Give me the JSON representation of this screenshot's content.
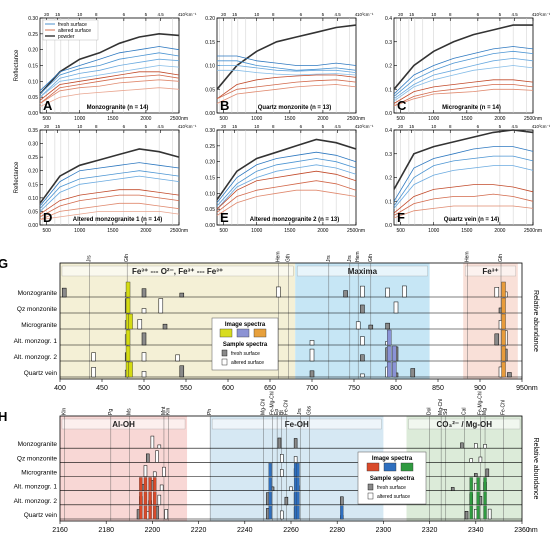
{
  "chart_data": [
    {
      "id": "A",
      "type": "line",
      "title": "Monzogranite (n = 14)",
      "ylabel": "Reflectance",
      "xlim": [
        400,
        2500
      ],
      "ylim": [
        0,
        0.3
      ],
      "yticks": [
        "0.00",
        "0.05",
        "0.10",
        "0.15",
        "0.20",
        "0.25",
        "0.30"
      ],
      "xticks": [
        "500",
        "1000",
        "1500",
        "2000",
        "2500nm"
      ],
      "top_ticks": [
        "20",
        "15",
        "10",
        "8",
        "6",
        "5",
        "4.5",
        "4",
        "10³cm⁻¹"
      ],
      "legend": [
        "fresh surface",
        "altered surface",
        "powder"
      ],
      "series": [
        {
          "group": "powder",
          "values": [
            0.06,
            0.13,
            0.17,
            0.19,
            0.22,
            0.24,
            0.25,
            0.245
          ]
        },
        {
          "group": "fresh",
          "values": [
            0.07,
            0.13,
            0.15,
            0.17,
            0.19,
            0.2,
            0.21,
            0.2
          ]
        },
        {
          "group": "fresh",
          "values": [
            0.06,
            0.12,
            0.14,
            0.15,
            0.17,
            0.18,
            0.19,
            0.18
          ]
        },
        {
          "group": "fresh",
          "values": [
            0.05,
            0.11,
            0.125,
            0.135,
            0.15,
            0.16,
            0.17,
            0.165
          ]
        },
        {
          "group": "fresh",
          "values": [
            0.05,
            0.1,
            0.11,
            0.12,
            0.13,
            0.14,
            0.15,
            0.145
          ]
        },
        {
          "group": "altered",
          "values": [
            0.04,
            0.09,
            0.1,
            0.11,
            0.12,
            0.13,
            0.13,
            0.12
          ]
        },
        {
          "group": "altered",
          "values": [
            0.03,
            0.08,
            0.09,
            0.1,
            0.11,
            0.115,
            0.12,
            0.11
          ]
        },
        {
          "group": "altered",
          "values": [
            0.03,
            0.07,
            0.08,
            0.085,
            0.095,
            0.1,
            0.105,
            0.1
          ]
        },
        {
          "group": "altered",
          "values": [
            0.02,
            0.05,
            0.06,
            0.065,
            0.07,
            0.075,
            0.08,
            0.075
          ]
        }
      ]
    },
    {
      "id": "B",
      "type": "line",
      "title": "Quartz monzonite (n = 13)",
      "xlim": [
        400,
        2500
      ],
      "ylim": [
        0,
        0.2
      ],
      "yticks": [
        "0.00",
        "0.05",
        "0.10",
        "0.15",
        "0.20"
      ],
      "xticks": [
        "500",
        "1000",
        "1500",
        "2000",
        "2500nm"
      ],
      "top_ticks": [
        "20",
        "15",
        "10",
        "8",
        "6",
        "5",
        "4.5",
        "4",
        "10³cm⁻¹"
      ],
      "series": [
        {
          "group": "powder",
          "values": [
            0.05,
            0.1,
            0.13,
            0.15,
            0.16,
            0.17,
            0.18,
            0.185
          ]
        },
        {
          "group": "fresh",
          "values": [
            0.12,
            0.12,
            0.11,
            0.105,
            0.1,
            0.1,
            0.105,
            0.1
          ]
        },
        {
          "group": "fresh",
          "values": [
            0.11,
            0.11,
            0.1,
            0.095,
            0.09,
            0.092,
            0.095,
            0.09
          ]
        },
        {
          "group": "fresh",
          "values": [
            0.1,
            0.1,
            0.095,
            0.09,
            0.088,
            0.09,
            0.09,
            0.085
          ]
        },
        {
          "group": "fresh",
          "values": [
            0.09,
            0.09,
            0.085,
            0.082,
            0.08,
            0.082,
            0.083,
            0.08
          ]
        },
        {
          "group": "altered",
          "values": [
            0.03,
            0.06,
            0.07,
            0.075,
            0.078,
            0.08,
            0.08,
            0.075
          ]
        },
        {
          "group": "altered",
          "values": [
            0.03,
            0.05,
            0.055,
            0.06,
            0.065,
            0.068,
            0.07,
            0.065
          ]
        },
        {
          "group": "altered",
          "values": [
            0.02,
            0.04,
            0.045,
            0.05,
            0.055,
            0.058,
            0.06,
            0.055
          ]
        }
      ]
    },
    {
      "id": "C",
      "type": "line",
      "title": "Microgranite (n = 14)",
      "xlim": [
        400,
        2500
      ],
      "ylim": [
        0,
        0.4
      ],
      "yticks": [
        "0.0",
        "0.1",
        "0.2",
        "0.3",
        "0.4"
      ],
      "xticks": [
        "500",
        "1000",
        "1500",
        "2000",
        "2500nm"
      ],
      "top_ticks": [
        "20",
        "15",
        "10",
        "8",
        "6",
        "5",
        "4.5",
        "4",
        "10³cm⁻¹"
      ],
      "series": [
        {
          "group": "powder",
          "values": [
            0.1,
            0.2,
            0.26,
            0.3,
            0.33,
            0.35,
            0.37,
            0.37
          ]
        },
        {
          "group": "fresh",
          "values": [
            0.08,
            0.16,
            0.2,
            0.23,
            0.25,
            0.27,
            0.28,
            0.27
          ]
        },
        {
          "group": "fresh",
          "values": [
            0.07,
            0.14,
            0.18,
            0.21,
            0.23,
            0.25,
            0.26,
            0.25
          ]
        },
        {
          "group": "fresh",
          "values": [
            0.06,
            0.12,
            0.16,
            0.18,
            0.2,
            0.22,
            0.23,
            0.22
          ]
        },
        {
          "group": "fresh",
          "values": [
            0.05,
            0.11,
            0.14,
            0.16,
            0.18,
            0.19,
            0.2,
            0.19
          ]
        },
        {
          "group": "altered",
          "values": [
            0.04,
            0.09,
            0.11,
            0.12,
            0.13,
            0.14,
            0.14,
            0.13
          ]
        },
        {
          "group": "altered",
          "values": [
            0.03,
            0.07,
            0.09,
            0.1,
            0.11,
            0.12,
            0.12,
            0.11
          ]
        },
        {
          "group": "altered",
          "values": [
            0.03,
            0.06,
            0.08,
            0.085,
            0.09,
            0.1,
            0.1,
            0.095
          ]
        }
      ]
    },
    {
      "id": "D",
      "type": "line",
      "title": "Altered monzogranite 1 (n = 14)",
      "ylabel": "Reflectance",
      "xlim": [
        400,
        2500
      ],
      "ylim": [
        0,
        0.35
      ],
      "yticks": [
        "0.00",
        "0.05",
        "0.10",
        "0.15",
        "0.20",
        "0.25",
        "0.30",
        "0.35"
      ],
      "xticks": [
        "500",
        "1000",
        "1500",
        "2000",
        "2500nm"
      ],
      "top_ticks": [
        "20",
        "15",
        "10",
        "8",
        "6",
        "5",
        "4.5",
        "4",
        "10³cm⁻¹"
      ],
      "series": [
        {
          "group": "powder",
          "values": [
            0.08,
            0.18,
            0.22,
            0.24,
            0.26,
            0.28,
            0.27,
            0.25
          ]
        },
        {
          "group": "fresh",
          "values": [
            0.07,
            0.16,
            0.2,
            0.21,
            0.22,
            0.23,
            0.22,
            0.21
          ]
        },
        {
          "group": "fresh",
          "values": [
            0.06,
            0.14,
            0.17,
            0.18,
            0.19,
            0.2,
            0.19,
            0.18
          ]
        },
        {
          "group": "fresh",
          "values": [
            0.05,
            0.12,
            0.15,
            0.16,
            0.17,
            0.18,
            0.17,
            0.16
          ]
        },
        {
          "group": "altered",
          "values": [
            0.04,
            0.09,
            0.11,
            0.12,
            0.13,
            0.13,
            0.12,
            0.11
          ]
        },
        {
          "group": "altered",
          "values": [
            0.03,
            0.07,
            0.09,
            0.1,
            0.11,
            0.11,
            0.1,
            0.09
          ]
        },
        {
          "group": "altered",
          "values": [
            0.02,
            0.05,
            0.06,
            0.07,
            0.08,
            0.08,
            0.07,
            0.06
          ]
        },
        {
          "group": "altered",
          "values": [
            0.02,
            0.03,
            0.04,
            0.05,
            0.05,
            0.05,
            0.05,
            0.04
          ]
        }
      ]
    },
    {
      "id": "E",
      "type": "line",
      "title": "Altered monzogranite 2 (n = 13)",
      "xlim": [
        400,
        2500
      ],
      "ylim": [
        0,
        0.3
      ],
      "yticks": [
        "0.00",
        "0.05",
        "0.10",
        "0.15",
        "0.20",
        "0.25",
        "0.30"
      ],
      "xticks": [
        "500",
        "1000",
        "1500",
        "2000",
        "2500nm"
      ],
      "top_ticks": [
        "20",
        "15",
        "10",
        "8",
        "6",
        "5",
        "4.5",
        "4",
        "10³cm⁻¹"
      ],
      "series": [
        {
          "group": "powder",
          "values": [
            0.08,
            0.17,
            0.21,
            0.23,
            0.25,
            0.27,
            0.26,
            0.24
          ]
        },
        {
          "group": "fresh",
          "values": [
            0.07,
            0.15,
            0.19,
            0.21,
            0.22,
            0.23,
            0.22,
            0.2
          ]
        },
        {
          "group": "fresh",
          "values": [
            0.06,
            0.13,
            0.17,
            0.19,
            0.2,
            0.21,
            0.2,
            0.18
          ]
        },
        {
          "group": "fresh",
          "values": [
            0.05,
            0.12,
            0.15,
            0.17,
            0.18,
            0.19,
            0.18,
            0.16
          ]
        },
        {
          "group": "altered",
          "values": [
            0.05,
            0.11,
            0.14,
            0.15,
            0.16,
            0.17,
            0.16,
            0.14
          ]
        },
        {
          "group": "altered",
          "values": [
            0.04,
            0.09,
            0.11,
            0.12,
            0.13,
            0.14,
            0.13,
            0.11
          ]
        },
        {
          "group": "altered",
          "values": [
            0.03,
            0.07,
            0.09,
            0.1,
            0.11,
            0.11,
            0.1,
            0.09
          ]
        }
      ]
    },
    {
      "id": "F",
      "type": "line",
      "title": "Quartz vein (n = 14)",
      "xlim": [
        400,
        2500
      ],
      "ylim": [
        0,
        0.4
      ],
      "yticks": [
        "0.0",
        "0.1",
        "0.2",
        "0.3",
        "0.4"
      ],
      "xticks": [
        "500",
        "1000",
        "1500",
        "2000",
        "2500nm"
      ],
      "top_ticks": [
        "20",
        "15",
        "10",
        "8",
        "6",
        "5",
        "4.5",
        "4",
        "10³cm⁻¹"
      ],
      "series": [
        {
          "group": "powder",
          "values": [
            0.15,
            0.3,
            0.33,
            0.35,
            0.37,
            0.39,
            0.4,
            0.39
          ]
        },
        {
          "group": "fresh",
          "values": [
            0.1,
            0.24,
            0.28,
            0.3,
            0.32,
            0.33,
            0.33,
            0.31
          ]
        },
        {
          "group": "fresh",
          "values": [
            0.08,
            0.2,
            0.25,
            0.27,
            0.28,
            0.29,
            0.29,
            0.27
          ]
        },
        {
          "group": "fresh",
          "values": [
            0.07,
            0.17,
            0.21,
            0.23,
            0.24,
            0.25,
            0.25,
            0.23
          ]
        },
        {
          "group": "altered",
          "values": [
            0.05,
            0.12,
            0.15,
            0.16,
            0.17,
            0.17,
            0.16,
            0.14
          ]
        },
        {
          "group": "altered",
          "values": [
            0.04,
            0.09,
            0.11,
            0.12,
            0.12,
            0.13,
            0.12,
            0.1
          ]
        },
        {
          "group": "altered",
          "values": [
            0.03,
            0.06,
            0.07,
            0.08,
            0.08,
            0.08,
            0.08,
            0.07
          ]
        }
      ]
    },
    {
      "id": "G",
      "type": "bar",
      "xlabel": "nm",
      "ylabel": "Relative abundance",
      "xlim": [
        400,
        950
      ],
      "xticks": [
        "400",
        "450",
        "500",
        "550",
        "600",
        "650",
        "700",
        "750",
        "800",
        "850",
        "900",
        "950"
      ],
      "rows": [
        "Monzogranite",
        "Qz monzonite",
        "Microgranite",
        "Alt. monzogr. 1",
        "Alt. monzogr. 2",
        "Quartz vein"
      ],
      "regions": [
        {
          "label": "Fe³⁺ --- O²⁻, Fe³⁺ --- Fe³⁺",
          "from": 400,
          "to": 680,
          "color": "#f4f0d6"
        },
        {
          "label": "Maxima",
          "from": 680,
          "to": 840,
          "color": "#c6e6f5"
        },
        {
          "label": "Fe³⁺",
          "from": 880,
          "to": 945,
          "color": "#f9e0d8"
        }
      ],
      "markers": [
        {
          "label": "Jrs",
          "x": 435
        },
        {
          "label": "Gth",
          "x": 480
        },
        {
          "label": "Hem",
          "x": 660
        },
        {
          "label": "Gth",
          "x": 672
        },
        {
          "label": "Jrs",
          "x": 720
        },
        {
          "label": "Jrs",
          "x": 745
        },
        {
          "label": "Hem",
          "x": 755
        },
        {
          "label": "Gth",
          "x": 770
        },
        {
          "label": "Hem",
          "x": 885
        },
        {
          "label": "Gth",
          "x": 925
        }
      ],
      "legend_title_image": "Image spectra",
      "legend_title_sample": "Sample spectra",
      "legend_sample": [
        "fresh surface",
        "altered surface"
      ],
      "image_colors": [
        "#d8dc1e",
        "#8c93d4",
        "#e7a03c"
      ],
      "image_spectra": [
        {
          "x": [
            480,
            482,
            484
          ],
          "values": [
            0.95,
            0.7,
            0.4
          ],
          "color": "#d4db12"
        },
        {
          "x": [
            790,
            795,
            800
          ],
          "values": [
            0.6,
            0.5,
            0.4
          ],
          "color": "#8a93d6"
        },
        {
          "x": [
            925,
            930
          ],
          "values": [
            0.5,
            1.0
          ],
          "color": "#e89b3a"
        }
      ]
    },
    {
      "id": "H",
      "type": "bar",
      "xlabel": "nm",
      "ylabel": "Relative abundance",
      "xlim": [
        2160,
        2360
      ],
      "xticks": [
        "2160",
        "2180",
        "2200",
        "2220",
        "2240",
        "2260",
        "2280",
        "2300",
        "2320",
        "2340",
        "2360"
      ],
      "rows": [
        "Monzogranite",
        "Qz monzonite",
        "Microgranite",
        "Alt. monzogr. 1",
        "Alt. monzogr. 2",
        "Quartz vein"
      ],
      "regions": [
        {
          "label": "Al-OH",
          "from": 2160,
          "to": 2215,
          "color": "#f8d7d5"
        },
        {
          "label": "Fe-OH",
          "from": 2225,
          "to": 2300,
          "color": "#d6e8f3"
        },
        {
          "label": "CO₃²⁻ / Mg-OH",
          "from": 2310,
          "to": 2360,
          "color": "#dcebd9"
        }
      ],
      "markers": [
        {
          "label": "Kln",
          "x": 2162
        },
        {
          "label": "Pg",
          "x": 2182
        },
        {
          "label": "Ms",
          "x": 2190
        },
        {
          "label": "Mnt",
          "x": 2205
        },
        {
          "label": "Kln",
          "x": 2207
        },
        {
          "label": "Ph",
          "x": 2225
        },
        {
          "label": "Mg-Chl",
          "x": 2248
        },
        {
          "label": "Fe-Mg-Chl",
          "x": 2252
        },
        {
          "label": "Ep",
          "x": 2254
        },
        {
          "label": "Bt",
          "x": 2256
        },
        {
          "label": "Fe-Chl",
          "x": 2258
        },
        {
          "label": "Jrs",
          "x": 2264
        },
        {
          "label": "Gbs",
          "x": 2268
        },
        {
          "label": "Dol",
          "x": 2320
        },
        {
          "label": "Mg-Chl",
          "x": 2325
        },
        {
          "label": "Sd",
          "x": 2327
        },
        {
          "label": "Cal",
          "x": 2335
        },
        {
          "label": "Fe-Mg-Chl",
          "x": 2342
        },
        {
          "label": "Mg",
          "x": 2344
        },
        {
          "label": "Fe-Chl",
          "x": 2352
        }
      ],
      "legend_title_image": "Image spectra",
      "legend_title_sample": "Sample spectra",
      "legend_sample": [
        "fresh surface",
        "altered surface"
      ],
      "image_colors": [
        "#d94a2a",
        "#2e6fbf",
        "#2f9a40"
      ]
    }
  ],
  "labels": {
    "A": "A",
    "B": "B",
    "C": "C",
    "D": "D",
    "E": "E",
    "F": "F",
    "G": "G",
    "H": "H",
    "ytitle": "Reflectance",
    "reltitle": "Relative abundance",
    "nm": "nm"
  }
}
